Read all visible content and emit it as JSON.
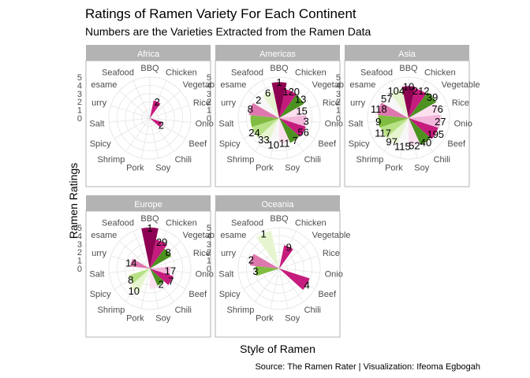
{
  "chart_data": {
    "type": "bar",
    "coord": "polar",
    "title": "Ratings of Ramen Variety For Each Continent",
    "subtitle": "Numbers are the Varieties Extracted from the Ramen Data",
    "xlabel": "Style of Ramen",
    "ylabel": "Ramen Ratings",
    "caption": "Source: The Ramen Rater | Visualization: Ifeoma Egbogah",
    "categories": [
      "BBQ",
      "Chicken",
      "Vegetable",
      "Rice",
      "Onion",
      "Beef",
      "Chili",
      "Soy",
      "Pork",
      "Shrimp",
      "Spicy",
      "Salt",
      "Curry",
      "Sesame",
      "Seafood"
    ],
    "category_labels": [
      "BBQ",
      "Chicken",
      "Vegetable",
      "Rice",
      "Onio",
      "Beef",
      "Chili",
      "Soy",
      "Pork",
      "Shrimp",
      "Spicy",
      "Salt",
      "urry",
      "esame",
      "Seafood"
    ],
    "ylim": [
      0,
      5
    ],
    "yticks": [
      0,
      1,
      2,
      3,
      4,
      5
    ],
    "grid": true,
    "legend": "none",
    "colors": {
      "BBQ": "#8e0152",
      "Chicken": "#c51b7d",
      "Vegetable": "#4d9221",
      "Rice": "#fde0ef",
      "Onion": "#f1b6da",
      "Beef": "#c51b7d",
      "Chili": "#4d9221",
      "Soy": "#fde0ef",
      "Pork": "#f7f7f7",
      "Shrimp": "#e6f5d0",
      "Spicy": "#b8e186",
      "Salt": "#7fbc41",
      "Curry": "#de77ae",
      "Sesame": "#f7f7f7",
      "Seafood": "#e6f5d0"
    },
    "facets": [
      {
        "name": "Africa",
        "ratings": [
          null,
          2.2,
          null,
          null,
          null,
          1.6,
          null,
          null,
          null,
          null,
          null,
          null,
          null,
          null,
          null
        ],
        "labels": [
          "",
          "2",
          "",
          "",
          "",
          "2",
          "",
          "",
          "",
          "",
          "",
          "",
          "",
          "",
          ""
        ]
      },
      {
        "name": "Americas",
        "ratings": [
          4.4,
          3.6,
          3.5,
          2.9,
          3.3,
          3.4,
          3.3,
          3.1,
          3.3,
          3.2,
          3.5,
          3.5,
          3.7,
          3.4,
          3.4
        ],
        "labels": [
          "1",
          "120",
          "13",
          "15",
          "3",
          "56",
          "7",
          "11",
          "10",
          "33",
          "24",
          "",
          "8",
          "2",
          "6"
        ]
      },
      {
        "name": "Asia",
        "ratings": [
          3.9,
          3.7,
          3.9,
          3.7,
          3.9,
          3.8,
          3.6,
          3.4,
          3.5,
          3.5,
          3.6,
          3.7,
          3.8,
          3.6,
          3.7
        ],
        "labels": [
          "10",
          "212",
          "39",
          "76",
          "27",
          "195",
          "40",
          "52",
          "115",
          "97",
          "117",
          "9",
          "118",
          "57",
          "104"
        ]
      },
      {
        "name": "Europe",
        "ratings": [
          5.0,
          3.6,
          3.0,
          null,
          2.5,
          3.0,
          2.3,
          2.5,
          null,
          3.3,
          2.7,
          null,
          2.4,
          null,
          null
        ],
        "labels": [
          "1",
          "29",
          "8",
          "",
          "17",
          "7",
          "2",
          "",
          "",
          "10",
          "8",
          "",
          "14",
          "",
          ""
        ]
      },
      {
        "name": "Oceania",
        "ratings": [
          null,
          2.9,
          null,
          null,
          null,
          3.9,
          null,
          null,
          null,
          null,
          null,
          2.9,
          3.6,
          null,
          4.7
        ],
        "labels": [
          "",
          "9",
          "",
          "",
          "",
          "4",
          "",
          "",
          "",
          "",
          "",
          "3",
          "2",
          "",
          "1"
        ]
      }
    ]
  }
}
